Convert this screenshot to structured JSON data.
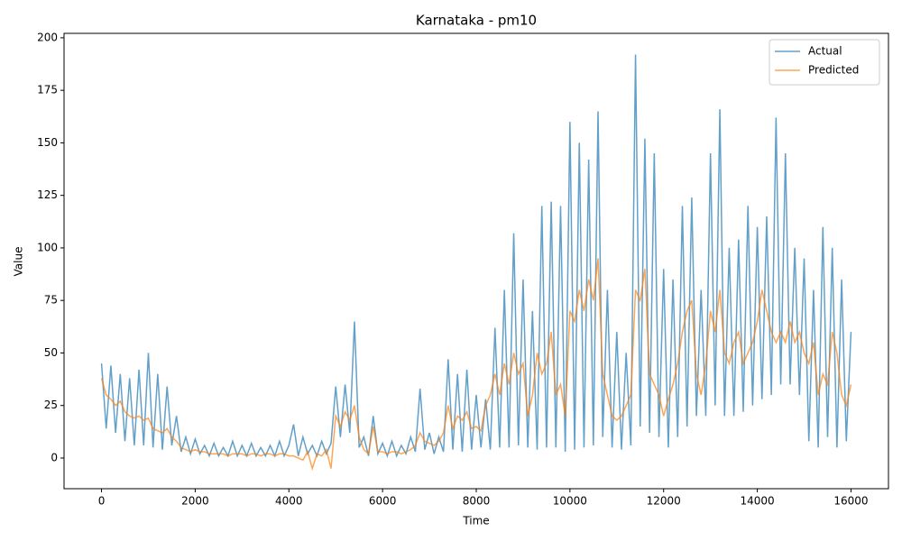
{
  "chart_data": {
    "type": "line",
    "title": "Karnataka - pm10",
    "xlabel": "Time",
    "ylabel": "Value",
    "x": [
      0,
      100,
      200,
      300,
      400,
      500,
      600,
      700,
      800,
      900,
      1000,
      1100,
      1200,
      1300,
      1400,
      1500,
      1600,
      1700,
      1800,
      1900,
      2000,
      2100,
      2200,
      2300,
      2400,
      2500,
      2600,
      2700,
      2800,
      2900,
      3000,
      3100,
      3200,
      3300,
      3400,
      3500,
      3600,
      3700,
      3800,
      3900,
      4000,
      4100,
      4200,
      4300,
      4400,
      4500,
      4600,
      4700,
      4800,
      4900,
      5000,
      5100,
      5200,
      5300,
      5400,
      5500,
      5600,
      5700,
      5800,
      5900,
      6000,
      6100,
      6200,
      6300,
      6400,
      6500,
      6600,
      6700,
      6800,
      6900,
      7000,
      7100,
      7200,
      7300,
      7400,
      7500,
      7600,
      7700,
      7800,
      7900,
      8000,
      8100,
      8200,
      8300,
      8400,
      8500,
      8600,
      8700,
      8800,
      8900,
      9000,
      9100,
      9200,
      9300,
      9400,
      9500,
      9600,
      9700,
      9800,
      9900,
      10000,
      10100,
      10200,
      10300,
      10400,
      10500,
      10600,
      10700,
      10800,
      10900,
      11000,
      11100,
      11200,
      11300,
      11400,
      11500,
      11600,
      11700,
      11800,
      11900,
      12000,
      12100,
      12200,
      12300,
      12400,
      12500,
      12600,
      12700,
      12800,
      12900,
      13000,
      13100,
      13200,
      13300,
      13400,
      13500,
      13600,
      13700,
      13800,
      13900,
      14000,
      14100,
      14200,
      14300,
      14400,
      14500,
      14600,
      14700,
      14800,
      14900,
      15000,
      15100,
      15200,
      15300,
      15400,
      15500,
      15600,
      15700,
      15800,
      15900,
      16000
    ],
    "series": [
      {
        "name": "Actual",
        "color": "#1f77b4",
        "alpha": 0.7,
        "values": [
          45,
          14,
          44,
          12,
          40,
          8,
          38,
          6,
          42,
          6,
          50,
          5,
          40,
          4,
          34,
          6,
          20,
          3,
          10,
          2,
          9,
          2,
          6,
          1,
          7,
          1,
          5,
          1,
          8,
          1,
          6,
          1,
          7,
          1,
          5,
          1,
          6,
          1,
          8,
          1,
          6,
          16,
          1,
          10,
          2,
          6,
          1,
          8,
          2,
          7,
          34,
          10,
          35,
          12,
          65,
          5,
          10,
          1,
          20,
          2,
          7,
          1,
          8,
          1,
          6,
          2,
          10,
          3,
          33,
          4,
          12,
          2,
          10,
          3,
          47,
          4,
          40,
          3,
          42,
          4,
          30,
          5,
          28,
          4,
          62,
          5,
          80,
          5,
          107,
          6,
          85,
          5,
          70,
          4,
          120,
          5,
          122,
          5,
          120,
          3,
          160,
          4,
          150,
          5,
          142,
          6,
          165,
          10,
          80,
          5,
          60,
          4,
          50,
          6,
          192,
          15,
          152,
          12,
          145,
          10,
          90,
          5,
          85,
          10,
          120,
          15,
          124,
          20,
          80,
          20,
          145,
          25,
          166,
          20,
          100,
          20,
          104,
          22,
          120,
          25,
          110,
          28,
          115,
          30,
          162,
          35,
          145,
          35,
          100,
          30,
          95,
          8,
          80,
          5,
          110,
          10,
          100,
          5,
          85,
          8,
          60
        ]
      },
      {
        "name": "Predicted",
        "color": "#ff7f0e",
        "alpha": 0.7,
        "values": [
          38,
          30,
          28,
          25,
          27,
          22,
          20,
          19,
          20,
          18,
          19,
          14,
          13,
          12,
          14,
          10,
          8,
          5,
          4,
          3,
          4,
          3,
          3,
          2,
          2,
          2,
          2,
          1,
          2,
          2,
          2,
          1,
          2,
          2,
          1,
          2,
          2,
          1,
          2,
          2,
          1,
          1,
          0,
          -1,
          3,
          -5,
          2,
          1,
          4,
          -5,
          20,
          15,
          22,
          18,
          25,
          10,
          4,
          2,
          15,
          3,
          3,
          2,
          3,
          3,
          2,
          3,
          4,
          6,
          12,
          8,
          7,
          6,
          8,
          12,
          25,
          14,
          20,
          18,
          22,
          14,
          15,
          13,
          25,
          30,
          40,
          30,
          45,
          35,
          50,
          40,
          45,
          20,
          30,
          50,
          40,
          45,
          60,
          30,
          35,
          20,
          70,
          65,
          80,
          70,
          85,
          75,
          95,
          40,
          30,
          20,
          18,
          20,
          25,
          30,
          80,
          75,
          90,
          40,
          35,
          30,
          20,
          28,
          35,
          45,
          60,
          70,
          75,
          40,
          30,
          45,
          70,
          60,
          80,
          50,
          45,
          55,
          60,
          45,
          50,
          55,
          65,
          80,
          70,
          60,
          55,
          60,
          55,
          65,
          55,
          60,
          50,
          45,
          55,
          30,
          40,
          35,
          60,
          50,
          30,
          25,
          35
        ]
      }
    ],
    "xlim": [
      -800,
      16800
    ],
    "ylim": [
      -14.6,
      202.1
    ],
    "xticks": [
      0,
      2000,
      4000,
      6000,
      8000,
      10000,
      12000,
      14000,
      16000
    ],
    "yticks": [
      0,
      25,
      50,
      75,
      100,
      125,
      150,
      175,
      200
    ],
    "legend": "upper right"
  }
}
